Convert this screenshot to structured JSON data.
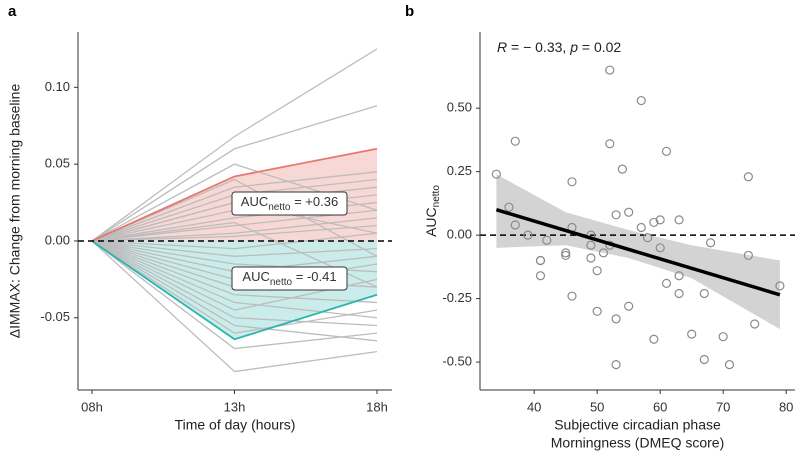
{
  "chart_data": [
    {
      "type": "line",
      "panel_label": "a",
      "x_label": "Time of day (hours)",
      "y_label": "ΔIMMAX: Change from morning baseline",
      "categories": [
        "08h",
        "13h",
        "18h"
      ],
      "ylim": [
        -0.097,
        0.136
      ],
      "yticks": [
        -0.05,
        {
          "value": 0,
          "label": "0.00"
        },
        {
          "value": 0.05,
          "label": "0.05"
        },
        {
          "value": 0.1,
          "label": "0.10"
        }
      ],
      "reference_line": 0,
      "series": [
        {
          "color": "#bdbdbd",
          "values": [
            0,
            0.068,
            0.125
          ]
        },
        {
          "color": "#bdbdbd",
          "values": [
            0,
            0.06,
            0.088
          ]
        },
        {
          "color": "#bdbdbd",
          "values": [
            0,
            0.035,
            0.045
          ]
        },
        {
          "color": "#bdbdbd",
          "values": [
            0,
            0.03,
            0.04
          ]
        },
        {
          "color": "#bdbdbd",
          "values": [
            0,
            0.025,
            0.035
          ]
        },
        {
          "color": "#bdbdbd",
          "values": [
            0,
            0.02,
            0.03
          ]
        },
        {
          "color": "#bdbdbd",
          "values": [
            0,
            0.015,
            0.025
          ]
        },
        {
          "color": "#bdbdbd",
          "values": [
            0,
            0.01,
            0.02
          ]
        },
        {
          "color": "#bdbdbd",
          "values": [
            0,
            0.005,
            0.015
          ]
        },
        {
          "color": "#bdbdbd",
          "values": [
            0,
            0.003,
            0.01
          ]
        },
        {
          "color": "#bdbdbd",
          "values": [
            0,
            0.05,
            0.02
          ]
        },
        {
          "color": "#bdbdbd",
          "values": [
            0,
            0.04,
            -0.01
          ]
        },
        {
          "color": "#bdbdbd",
          "values": [
            0,
            0.025,
            0.005
          ]
        },
        {
          "color": "#bdbdbd",
          "values": [
            0,
            -0.005,
            0.005
          ]
        },
        {
          "color": "#bdbdbd",
          "values": [
            0,
            -0.01,
            -0.005
          ]
        },
        {
          "color": "#bdbdbd",
          "values": [
            0,
            -0.015,
            -0.02
          ]
        },
        {
          "color": "#bdbdbd",
          "values": [
            0,
            -0.02,
            -0.01
          ]
        },
        {
          "color": "#bdbdbd",
          "values": [
            0,
            -0.025,
            -0.03
          ]
        },
        {
          "color": "#bdbdbd",
          "values": [
            0,
            -0.03,
            -0.015
          ]
        },
        {
          "color": "#bdbdbd",
          "values": [
            0,
            -0.035,
            -0.04
          ]
        },
        {
          "color": "#bdbdbd",
          "values": [
            0,
            -0.04,
            -0.05
          ]
        },
        {
          "color": "#bdbdbd",
          "values": [
            0,
            -0.045,
            -0.025
          ]
        },
        {
          "color": "#bdbdbd",
          "values": [
            0,
            -0.05,
            -0.055
          ]
        },
        {
          "color": "#bdbdbd",
          "values": [
            0,
            -0.055,
            -0.065
          ]
        },
        {
          "color": "#bdbdbd",
          "values": [
            0,
            -0.07,
            -0.06
          ]
        },
        {
          "color": "#bdbdbd",
          "values": [
            0,
            -0.085,
            -0.072
          ]
        },
        {
          "color": "#bdbdbd",
          "values": [
            0,
            -0.06,
            -0.045
          ]
        },
        {
          "color": "#bdbdbd",
          "values": [
            0,
            0.012,
            -0.03
          ]
        },
        {
          "color": "#e8776f",
          "fill": "#f3b8b3",
          "values": [
            0,
            0.042,
            0.06
          ]
        },
        {
          "color": "#2bb5ad",
          "fill": "#9fdcd8",
          "values": [
            0,
            -0.064,
            -0.035
          ]
        }
      ],
      "annotations": [
        {
          "text": "AUC",
          "sub": "netto",
          "rest": " = +0.36"
        },
        {
          "text": "AUC",
          "sub": "netto",
          "rest": " = -0.41"
        }
      ]
    },
    {
      "type": "scatter",
      "panel_label": "b",
      "x_label": [
        "Subjective circadian phase",
        "Morningness (DMEQ score)"
      ],
      "y_label": {
        "text": "AUC",
        "sub": "netto"
      },
      "xlim": [
        31.4,
        81.4
      ],
      "xticks": [
        40,
        50,
        60,
        70,
        80
      ],
      "ylim": [
        -0.61,
        0.8
      ],
      "yticks": [
        {
          "value": -0.5,
          "label": "-0.50"
        },
        -0.25,
        {
          "value": 0,
          "label": "0.00"
        },
        0.25,
        {
          "value": 0.5,
          "label": "0.50"
        }
      ],
      "reference_line": 0,
      "point_color": "#8a8a8a",
      "x": [
        34,
        36,
        37,
        37,
        39,
        41,
        41,
        41,
        42,
        45,
        45,
        46,
        46,
        46,
        49,
        49,
        49,
        50,
        50,
        51,
        52,
        52,
        52,
        53,
        53,
        53,
        54,
        55,
        55,
        57,
        57,
        58,
        59,
        59,
        60,
        60,
        61,
        61,
        63,
        63,
        63,
        65,
        67,
        67,
        68,
        70,
        71,
        74,
        74,
        75,
        79
      ],
      "values": [
        0.24,
        0.11,
        0.37,
        0.04,
        0,
        -0.1,
        -0.1,
        -0.16,
        -0.02,
        -0.07,
        -0.08,
        0.21,
        -0.24,
        0.03,
        -0.04,
        -0.09,
        0,
        -0.14,
        -0.3,
        -0.07,
        0.36,
        0.65,
        -0.04,
        0.08,
        -0.33,
        -0.51,
        0.26,
        0.09,
        -0.28,
        0.53,
        0.03,
        -0.01,
        0.05,
        -0.41,
        0.06,
        -0.05,
        0.33,
        -0.19,
        0.06,
        -0.16,
        -0.23,
        -0.39,
        -0.23,
        -0.49,
        -0.03,
        -0.4,
        -0.51,
        0.23,
        -0.08,
        -0.35,
        -0.2
      ],
      "fit": {
        "color": "#000000",
        "x": [
          34,
          79
        ],
        "values": [
          0.1,
          -0.235
        ]
      },
      "band": {
        "color": "#d3d3d3",
        "x": [
          34,
          45,
          55,
          65,
          79
        ],
        "upper": [
          0.24,
          0.09,
          0.02,
          -0.04,
          -0.1
        ],
        "lower": [
          -0.05,
          -0.04,
          -0.09,
          -0.17,
          -0.37
        ]
      },
      "annotation": [
        {
          "text": "R",
          "italic": true
        },
        {
          "text": " = − 0.33, "
        },
        {
          "text": "p",
          "italic": true
        },
        {
          "text": " = 0.02"
        }
      ]
    }
  ]
}
